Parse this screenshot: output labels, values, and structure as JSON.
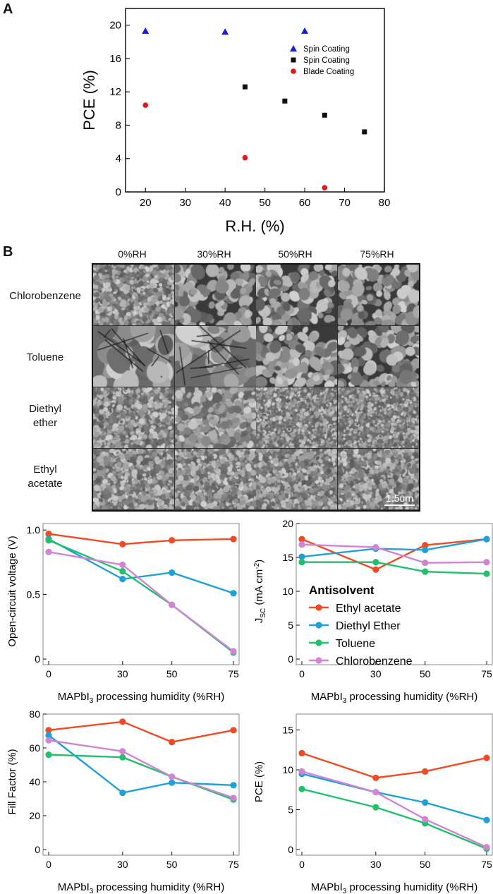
{
  "panel_labels": {
    "a": "A",
    "b": "B"
  },
  "sem": {
    "columns": [
      "0%RH",
      "30%RH",
      "50%RH",
      "75%RH"
    ],
    "rows": [
      {
        "label_lines": [
          "Chlorobenzene"
        ]
      },
      {
        "label_lines": [
          "Toluene"
        ]
      },
      {
        "label_lines": [
          "Diethyl",
          "ether"
        ]
      },
      {
        "label_lines": [
          "Ethyl",
          "acetate"
        ]
      }
    ],
    "scale_bar": "1.5um"
  },
  "colors": {
    "blue": "#1a1adb",
    "black": "#111111",
    "red": "#e8141b",
    "ethyl": "#f04a24",
    "diethyl": "#1ea0d8",
    "toluene": "#21c06a",
    "chloro": "#d184d6"
  },
  "chart_data": [
    {
      "type": "scatter",
      "xlabel": "R.H. (%)",
      "ylabel": "PCE (%)",
      "xlim": [
        15,
        80
      ],
      "ylim": [
        0,
        22
      ],
      "xticks": [
        20,
        30,
        40,
        50,
        60,
        70,
        80
      ],
      "yticks": [
        0,
        4,
        8,
        12,
        16,
        20
      ],
      "legend": "top-right",
      "series": [
        {
          "name": "Spin Coating",
          "marker": "triangle",
          "color": "#1a1adb",
          "x": [
            20,
            40,
            60
          ],
          "y": [
            19.3,
            19.2,
            19.3
          ]
        },
        {
          "name": "Spin Coating",
          "marker": "square",
          "color": "#111111",
          "x": [
            45,
            55,
            65,
            75
          ],
          "y": [
            12.6,
            10.9,
            9.2,
            7.2
          ]
        },
        {
          "name": "Blade Coating",
          "marker": "circle",
          "color": "#e8141b",
          "x": [
            20,
            45,
            65
          ],
          "y": [
            10.4,
            4.1,
            0.5
          ]
        }
      ]
    },
    {
      "type": "line",
      "xlabel": "MAPbI3 processing humidity (%RH)",
      "ylabel": "Open-circuit voltage (V)",
      "x": [
        0,
        30,
        50,
        75
      ],
      "xlim": [
        0,
        75
      ],
      "ylim": [
        0,
        1.05
      ],
      "yticks": [
        0,
        0.5,
        1.0
      ],
      "ytick_labels": [
        "0",
        "0.5",
        "1.0"
      ],
      "series": [
        {
          "color": "#f04a24",
          "values": [
            0.97,
            0.89,
            0.92,
            0.93
          ]
        },
        {
          "color": "#1ea0d8",
          "values": [
            0.93,
            0.62,
            0.67,
            0.51
          ]
        },
        {
          "color": "#21c06a",
          "values": [
            0.92,
            0.68,
            0.42,
            0.05
          ]
        },
        {
          "color": "#d184d6",
          "values": [
            0.83,
            0.73,
            0.42,
            0.06
          ]
        }
      ]
    },
    {
      "type": "line",
      "xlabel": "MAPbI3 processing humidity (%RH)",
      "ylabel": "JSC (mA cm-2)",
      "x": [
        0,
        30,
        50,
        75
      ],
      "xlim": [
        0,
        75
      ],
      "ylim": [
        0,
        20
      ],
      "yticks": [
        0,
        5,
        10,
        15,
        20
      ],
      "legend_title": "Antisolvent",
      "legend": "middle-left",
      "series": [
        {
          "name": "Ethyl acetate",
          "color": "#f04a24",
          "values": [
            17.7,
            13.2,
            16.8,
            17.7
          ]
        },
        {
          "name": "Diethyl Ether",
          "color": "#1ea0d8",
          "values": [
            15.1,
            16.3,
            16.1,
            17.7
          ]
        },
        {
          "name": "Toluene",
          "color": "#21c06a",
          "values": [
            14.3,
            14.3,
            12.9,
            12.6
          ]
        },
        {
          "name": "Chlorobenzene",
          "color": "#d184d6",
          "values": [
            16.9,
            16.5,
            14.2,
            14.3
          ]
        }
      ]
    },
    {
      "type": "line",
      "xlabel": "MAPbI3 processing humidity (%RH)",
      "ylabel": "Fill Factor (%)",
      "x": [
        0,
        30,
        50,
        75
      ],
      "xlim": [
        0,
        75
      ],
      "ylim": [
        0,
        80
      ],
      "yticks": [
        0,
        20,
        40,
        60,
        80
      ],
      "series": [
        {
          "color": "#f04a24",
          "values": [
            70.5,
            75.5,
            63.5,
            70.5
          ]
        },
        {
          "color": "#1ea0d8",
          "values": [
            67.5,
            33.5,
            39.5,
            38
          ]
        },
        {
          "color": "#21c06a",
          "values": [
            56,
            54.5,
            43,
            29.5
          ]
        },
        {
          "color": "#d184d6",
          "values": [
            64.5,
            58,
            43,
            30.5
          ]
        }
      ]
    },
    {
      "type": "line",
      "xlabel": "MAPbI3 processing humidity (%RH)",
      "ylabel": "PCE (%)",
      "x": [
        0,
        30,
        50,
        75
      ],
      "xlim": [
        0,
        75
      ],
      "ylim": [
        0,
        17
      ],
      "yticks": [
        0,
        5,
        10,
        15
      ],
      "series": [
        {
          "color": "#f04a24",
          "values": [
            12.1,
            9.0,
            9.8,
            11.5
          ]
        },
        {
          "color": "#1ea0d8",
          "values": [
            9.5,
            7.2,
            5.9,
            3.7
          ]
        },
        {
          "color": "#21c06a",
          "values": [
            7.6,
            5.3,
            3.3,
            0.1
          ]
        },
        {
          "color": "#d184d6",
          "values": [
            9.8,
            7.2,
            3.8,
            0.3
          ]
        }
      ]
    }
  ]
}
